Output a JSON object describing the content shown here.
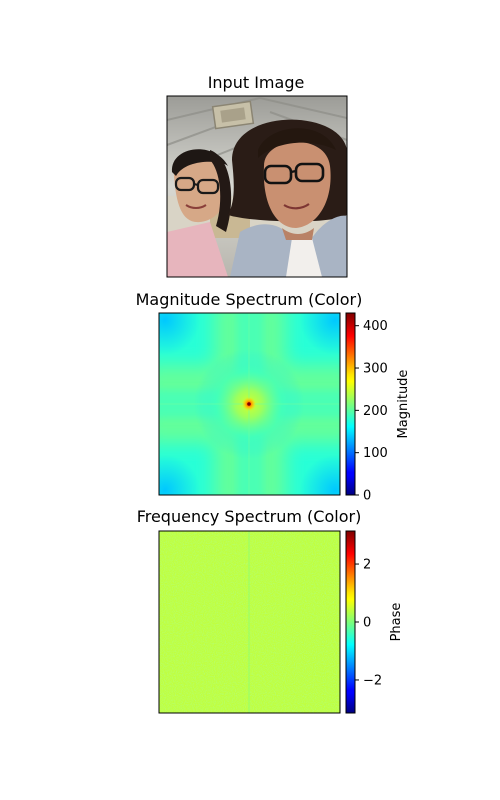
{
  "chart_data": [
    {
      "type": "image",
      "title": "Input Image",
      "content": "photo"
    },
    {
      "type": "heatmap",
      "title": "Magnitude Spectrum (Color)",
      "colormap": "jet",
      "colorbar": {
        "label": "Magnitude",
        "range": [
          0,
          430
        ],
        "ticks": [
          0,
          100,
          200,
          300,
          400
        ],
        "tick_labels": [
          "0",
          "100",
          "200",
          "300",
          "400"
        ]
      },
      "pattern": {
        "background": 178,
        "cross_arms": 205,
        "center_peak": 300,
        "center_spike": 430
      }
    },
    {
      "type": "heatmap",
      "title": "Frequency Spectrum (Color)",
      "colormap": "jet",
      "colorbar": {
        "label": "Phase",
        "range": [
          -3.14,
          3.14
        ],
        "ticks": [
          -2,
          0,
          2
        ],
        "tick_labels": [
          "−2",
          "0",
          "2"
        ]
      },
      "pattern": {
        "mean": 0.4,
        "noise": 0.15
      }
    }
  ]
}
